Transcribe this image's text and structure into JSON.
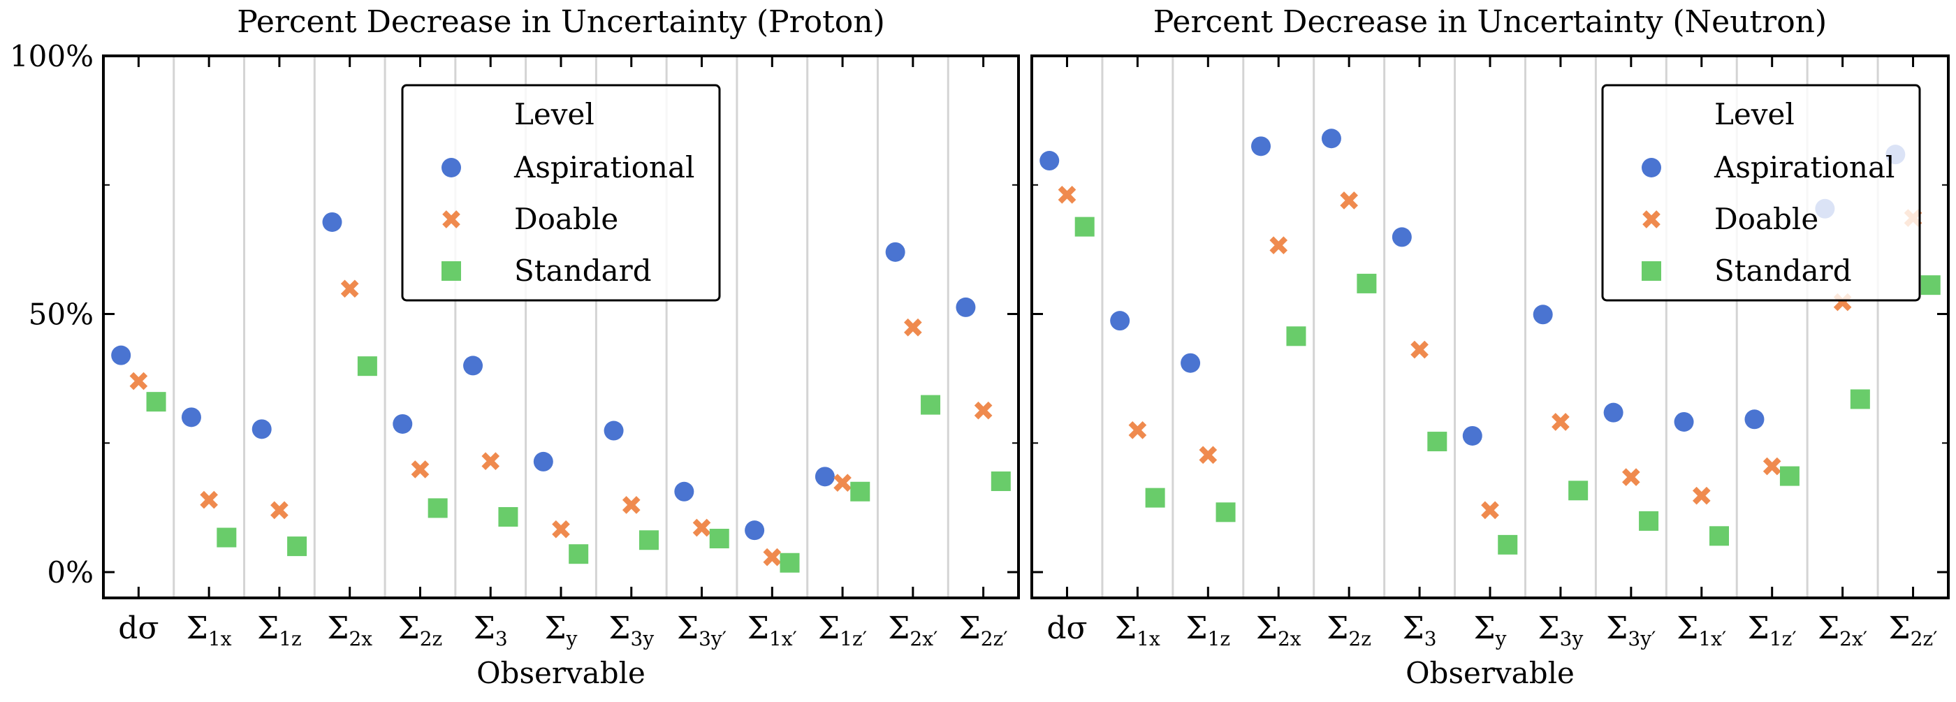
{
  "colors": {
    "aspirational": "#4a74d1",
    "doable": "#ef8a4e",
    "standard": "#69cc6a",
    "grid": "#d4d4d4"
  },
  "legend": {
    "title": "Level",
    "entries": [
      "Aspirational",
      "Doable",
      "Standard"
    ]
  },
  "chart_data": [
    {
      "type": "scatter",
      "title": "Percent Decrease in Uncertainty (Proton)",
      "xlabel": "Observable",
      "ylabel": "",
      "ylim": [
        -5,
        100
      ],
      "yticks": [
        0,
        50,
        100
      ],
      "ytick_labels": [
        "0%",
        "50%",
        "100%"
      ],
      "categories": [
        "dσ",
        "Σ1x",
        "Σ1z",
        "Σ2x",
        "Σ2z",
        "Σ3",
        "Σy",
        "Σ3y",
        "Σ3y′",
        "Σ1x′",
        "Σ1z′",
        "Σ2x′",
        "Σ2z′"
      ],
      "category_labels": [
        {
          "main": "dσ",
          "sub": ""
        },
        {
          "main": "Σ",
          "sub": "1x"
        },
        {
          "main": "Σ",
          "sub": "1z"
        },
        {
          "main": "Σ",
          "sub": "2x"
        },
        {
          "main": "Σ",
          "sub": "2z"
        },
        {
          "main": "Σ",
          "sub": "3"
        },
        {
          "main": "Σ",
          "sub": "y"
        },
        {
          "main": "Σ",
          "sub": "3y"
        },
        {
          "main": "Σ",
          "sub": "3y′"
        },
        {
          "main": "Σ",
          "sub": "1x′"
        },
        {
          "main": "Σ",
          "sub": "1z′"
        },
        {
          "main": "Σ",
          "sub": "2x′"
        },
        {
          "main": "Σ",
          "sub": "2z′"
        }
      ],
      "grid": true,
      "legend_placement": "top-center",
      "series": [
        {
          "name": "Aspirational",
          "values": [
            42,
            30,
            27.7,
            67.8,
            28.7,
            40,
            21.4,
            27.4,
            15.6,
            8.1,
            18.5,
            62,
            51.3
          ]
        },
        {
          "name": "Doable",
          "values": [
            37,
            14,
            12,
            54.9,
            19.9,
            21.5,
            8.3,
            13,
            8.6,
            2.9,
            17.3,
            47.4,
            31.3
          ]
        },
        {
          "name": "Standard",
          "values": [
            33,
            6.7,
            5,
            39.9,
            12.4,
            10.7,
            3.5,
            6.2,
            6.5,
            1.8,
            15.6,
            32.4,
            17.6
          ]
        }
      ]
    },
    {
      "type": "scatter",
      "title": "Percent Decrease in Uncertainty (Neutron)",
      "xlabel": "Observable",
      "ylabel": "",
      "ylim": [
        -5,
        100
      ],
      "yticks": [
        0,
        50,
        100
      ],
      "ytick_labels": [
        "",
        "",
        ""
      ],
      "categories": [
        "dσ",
        "Σ1x",
        "Σ1z",
        "Σ2x",
        "Σ2z",
        "Σ3",
        "Σy",
        "Σ3y",
        "Σ3y′",
        "Σ1x′",
        "Σ1z′",
        "Σ2x′",
        "Σ2z′"
      ],
      "category_labels": [
        {
          "main": "dσ",
          "sub": ""
        },
        {
          "main": "Σ",
          "sub": "1x"
        },
        {
          "main": "Σ",
          "sub": "1z"
        },
        {
          "main": "Σ",
          "sub": "2x"
        },
        {
          "main": "Σ",
          "sub": "2z"
        },
        {
          "main": "Σ",
          "sub": "3"
        },
        {
          "main": "Σ",
          "sub": "y"
        },
        {
          "main": "Σ",
          "sub": "3y"
        },
        {
          "main": "Σ",
          "sub": "3y′"
        },
        {
          "main": "Σ",
          "sub": "1x′"
        },
        {
          "main": "Σ",
          "sub": "1z′"
        },
        {
          "main": "Σ",
          "sub": "2x′"
        },
        {
          "main": "Σ",
          "sub": "2z′"
        }
      ],
      "grid": true,
      "legend_placement": "top-right",
      "series": [
        {
          "name": "Aspirational",
          "values": [
            79.7,
            48.7,
            40.5,
            82.5,
            84,
            64.9,
            26.4,
            49.9,
            30.9,
            29.1,
            29.6,
            70.4,
            80.9
          ]
        },
        {
          "name": "Doable",
          "values": [
            73.1,
            27.5,
            22.7,
            63.3,
            72,
            43.1,
            12,
            29.1,
            18.4,
            14.8,
            20.5,
            52.3,
            68.6
          ]
        },
        {
          "name": "Standard",
          "values": [
            66.9,
            14.4,
            11.6,
            45.7,
            55.9,
            25.3,
            5.3,
            15.8,
            9.9,
            7,
            18.6,
            33.5,
            55.6
          ]
        }
      ]
    }
  ]
}
